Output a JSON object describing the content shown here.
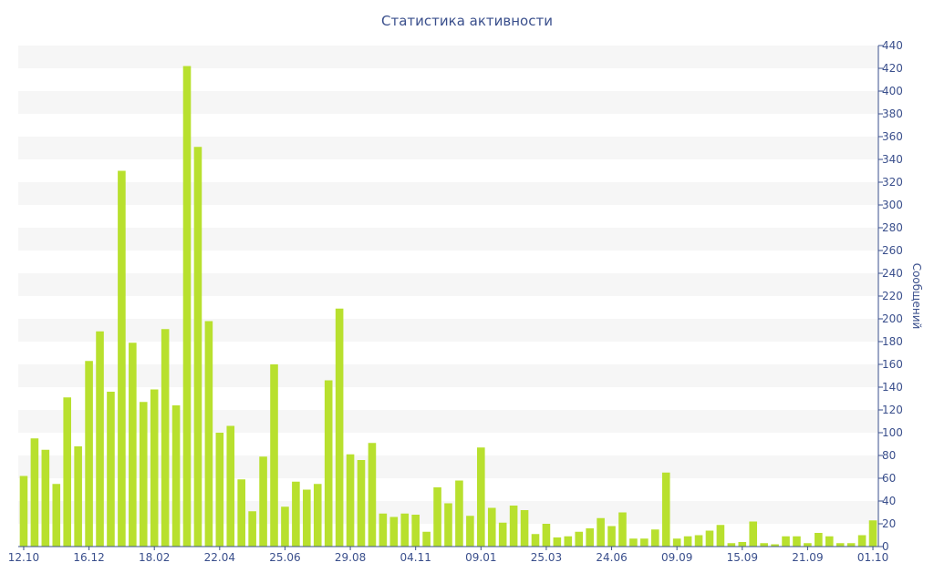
{
  "chart_data": {
    "type": "bar",
    "title": "Статистика активности",
    "xlabel": "",
    "ylabel": "Сообщений",
    "y_axis_side": "right",
    "ylim": [
      0,
      440
    ],
    "y_ticks": [
      0,
      20,
      40,
      60,
      80,
      100,
      120,
      140,
      160,
      180,
      200,
      220,
      240,
      260,
      280,
      300,
      320,
      340,
      360,
      380,
      400,
      420,
      440
    ],
    "x_tick_labels": [
      {
        "index": 0,
        "label": "12.10"
      },
      {
        "index": 6,
        "label": "16.12"
      },
      {
        "index": 12,
        "label": "18.02"
      },
      {
        "index": 18,
        "label": "22.04"
      },
      {
        "index": 24,
        "label": "25.06"
      },
      {
        "index": 30,
        "label": "29.08"
      },
      {
        "index": 36,
        "label": "04.11"
      },
      {
        "index": 42,
        "label": "09.01"
      },
      {
        "index": 48,
        "label": "25.03"
      },
      {
        "index": 54,
        "label": "24.06"
      },
      {
        "index": 60,
        "label": "09.09"
      },
      {
        "index": 66,
        "label": "15.09"
      },
      {
        "index": 72,
        "label": "21.09"
      },
      {
        "index": 78,
        "label": "01.10"
      }
    ],
    "grid": "alternating horizontal bands",
    "bar_color": "#b8e02e",
    "values": [
      62,
      95,
      85,
      55,
      131,
      88,
      163,
      189,
      136,
      330,
      179,
      127,
      138,
      191,
      124,
      422,
      351,
      198,
      100,
      106,
      59,
      31,
      79,
      160,
      35,
      57,
      50,
      55,
      146,
      209,
      81,
      76,
      91,
      29,
      26,
      29,
      28,
      13,
      52,
      38,
      58,
      27,
      87,
      34,
      21,
      36,
      32,
      11,
      20,
      8,
      9,
      13,
      16,
      25,
      18,
      30,
      7,
      7,
      15,
      65,
      7,
      9,
      10,
      14,
      19,
      3,
      4,
      22,
      3,
      2,
      9,
      9,
      3,
      12,
      9,
      3,
      3,
      10,
      23
    ]
  }
}
